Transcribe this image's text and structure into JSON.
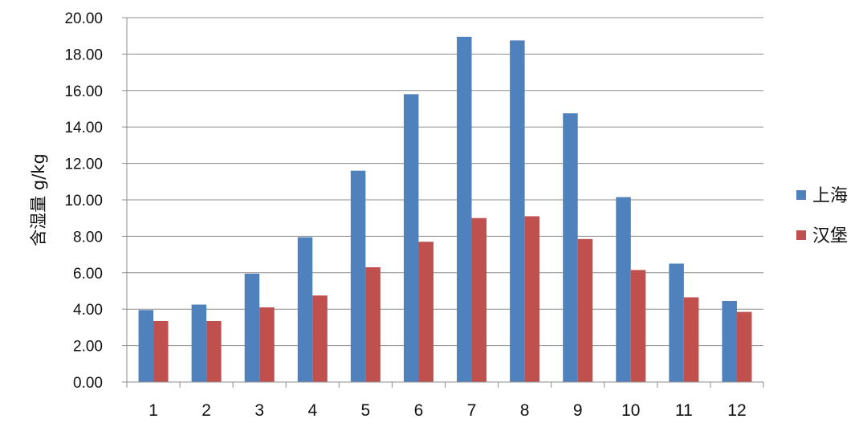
{
  "chart_data": {
    "type": "bar",
    "title": "",
    "xlabel": "",
    "ylabel": "含湿量 g/kg",
    "categories": [
      "1",
      "2",
      "3",
      "4",
      "5",
      "6",
      "7",
      "8",
      "9",
      "10",
      "11",
      "12"
    ],
    "series": [
      {
        "name": "上海",
        "color": "#4f81bd",
        "values": [
          3.95,
          4.25,
          5.95,
          7.95,
          11.6,
          15.8,
          18.95,
          18.75,
          14.75,
          10.15,
          6.5,
          4.45
        ]
      },
      {
        "name": "汉堡",
        "color": "#c0504d",
        "values": [
          3.35,
          3.35,
          4.1,
          4.75,
          6.3,
          7.7,
          9.0,
          9.1,
          7.85,
          6.15,
          4.65,
          3.85
        ]
      }
    ],
    "ylim": [
      0,
      20
    ],
    "y_ticks": [
      "0.00",
      "2.00",
      "4.00",
      "6.00",
      "8.00",
      "10.00",
      "12.00",
      "14.00",
      "16.00",
      "18.00",
      "20.00"
    ],
    "grid": true,
    "legend_position": "right"
  }
}
